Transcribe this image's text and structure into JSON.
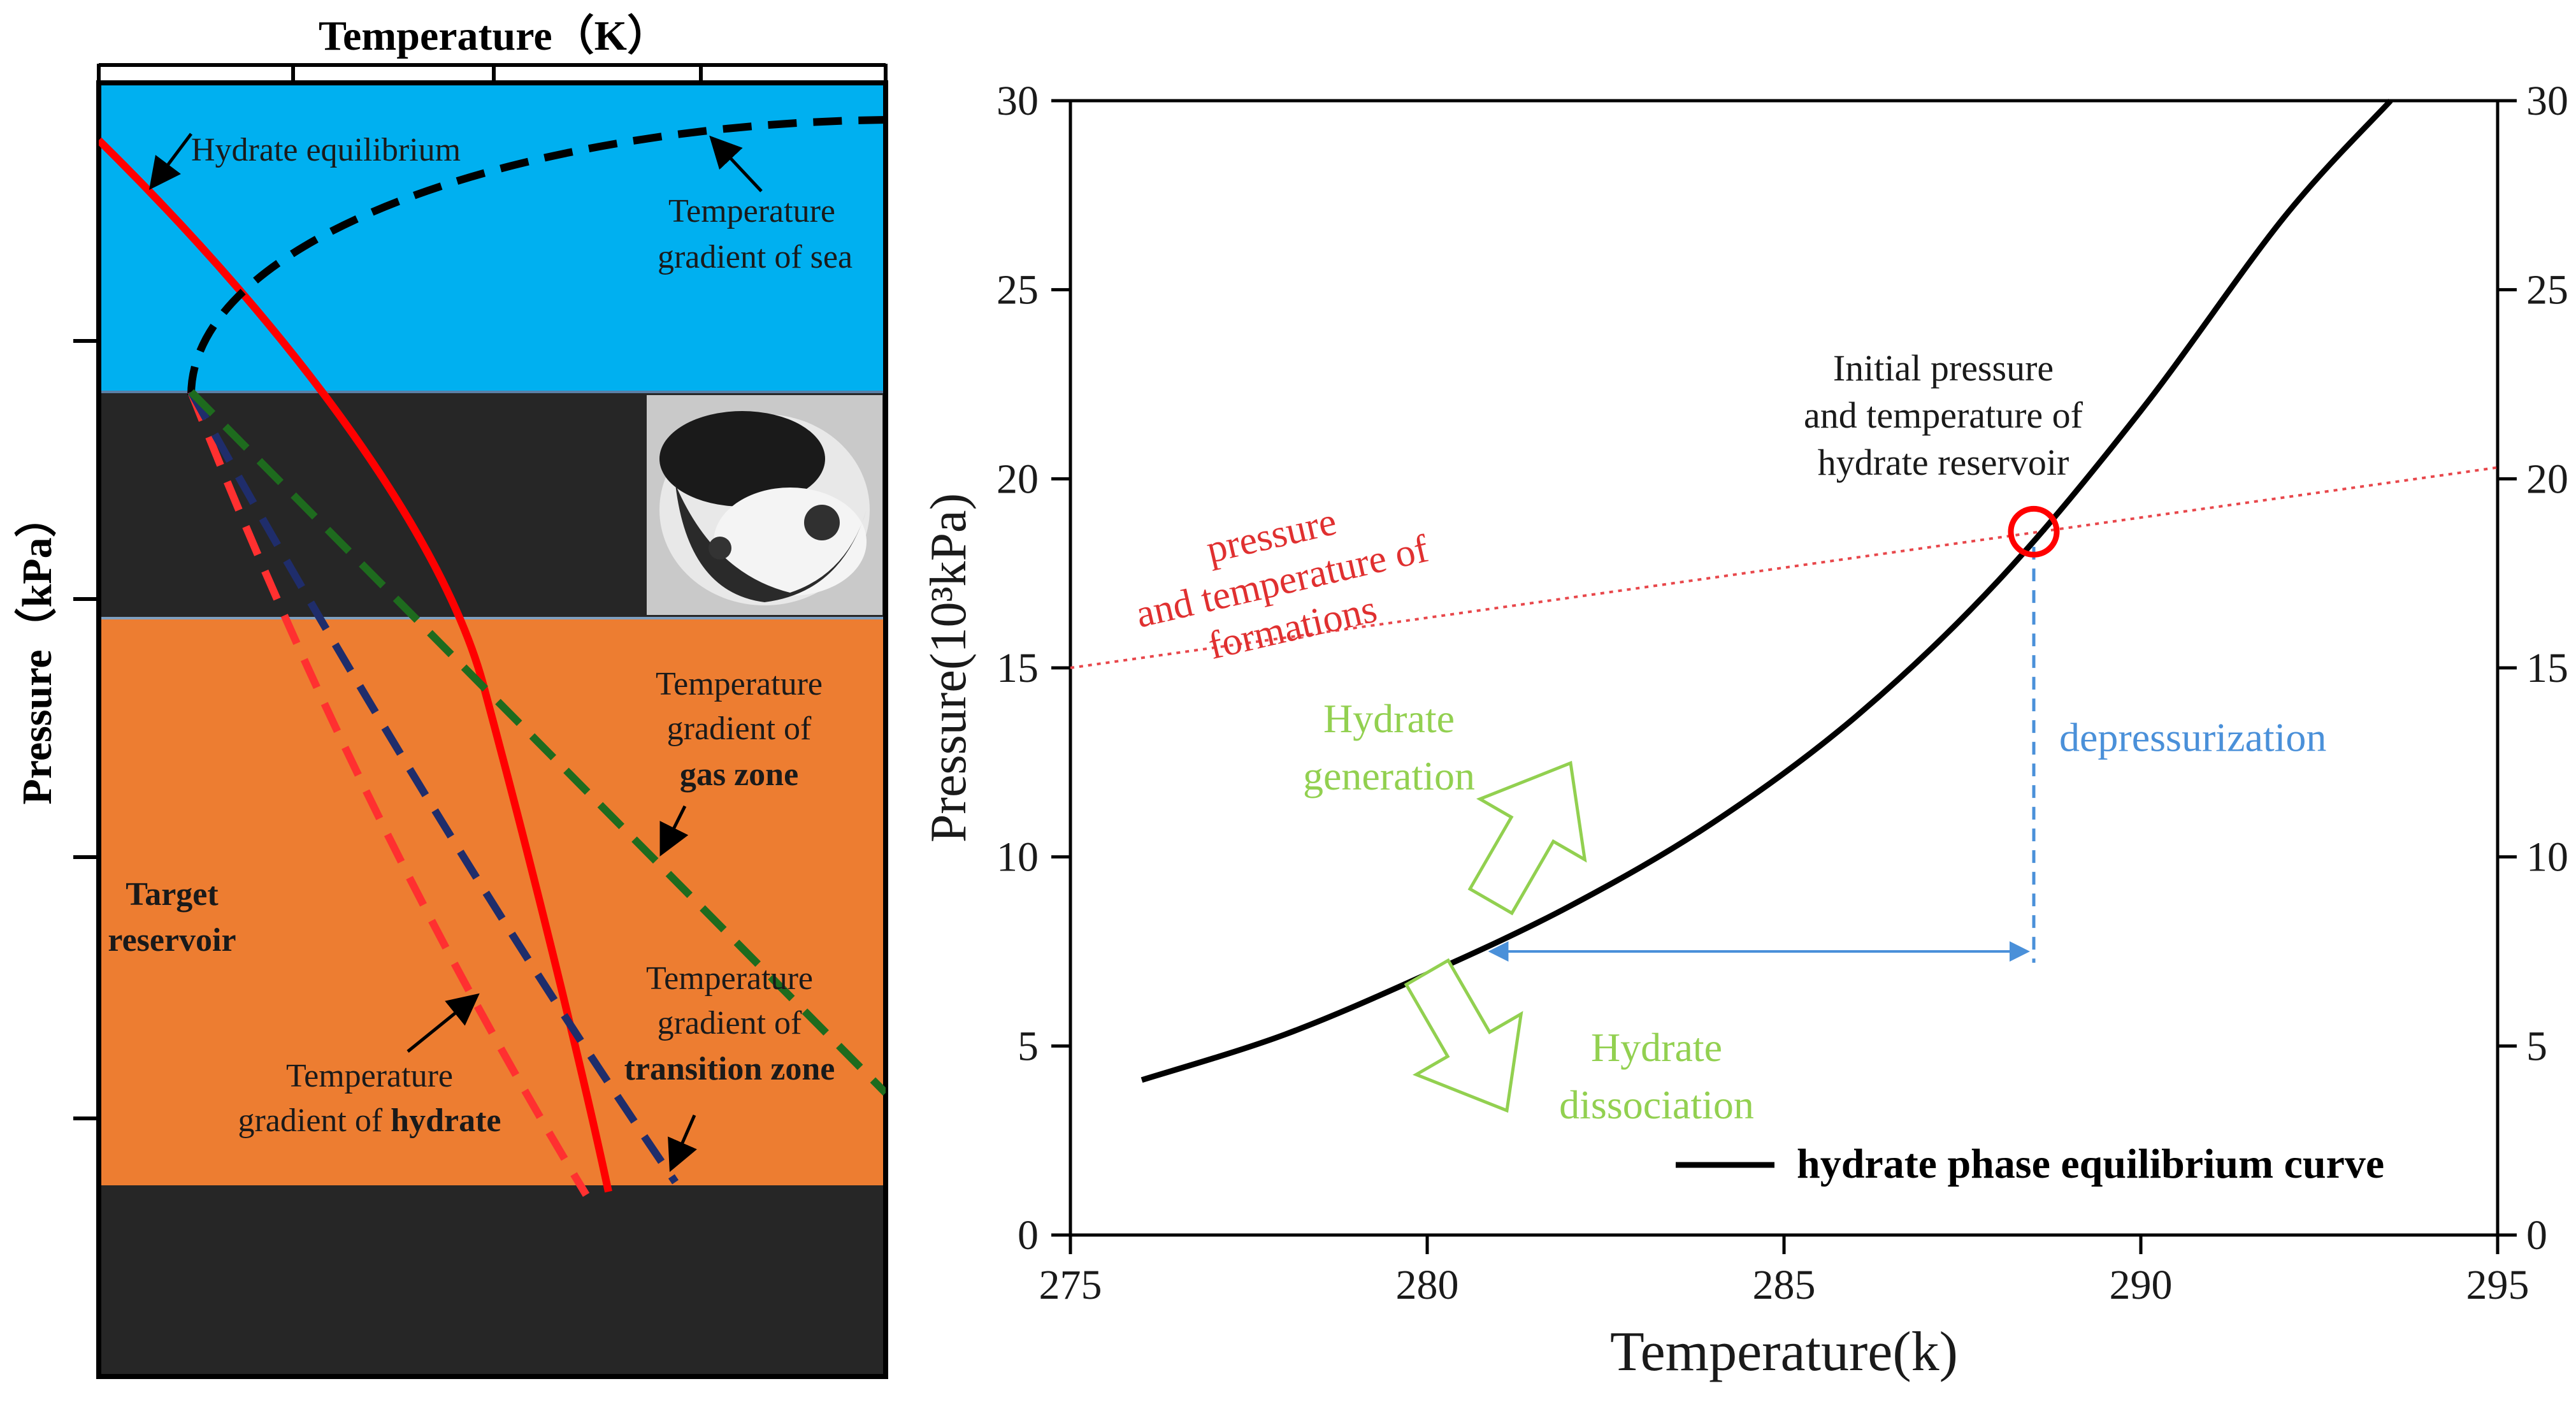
{
  "left_panel": {
    "top_axis_title": "Temperature（K）",
    "y_axis_title": "Pressure（kPa）",
    "colors": {
      "sea": "#00b0f0",
      "dark_layer": "#262626",
      "reservoir": "#ed7d31",
      "hydrate_equilibrium": "#ff0000",
      "sea_gradient": "#000000",
      "hydrate_gradient": "#ff3030",
      "transition_gradient": "#1f2d6b",
      "gas_gradient": "#1e6b1e"
    },
    "labels": {
      "hydrate_equilibrium": "Hydrate equilibrium",
      "sea_gradient_1": "Temperature",
      "sea_gradient_2": "gradient of sea",
      "gas_gradient_1": "Temperature",
      "gas_gradient_2": "gradient of",
      "gas_gradient_3": "gas zone",
      "target_1": "Target",
      "target_2": "reservoir",
      "hydrate_gradient_1": "Temperature",
      "hydrate_gradient_2a": "gradient of ",
      "hydrate_gradient_2b": "hydrate",
      "transition_gradient_1": "Temperature",
      "transition_gradient_2": "gradient of",
      "transition_gradient_3": "transition zone"
    }
  },
  "chart_data": {
    "type": "line",
    "title": "",
    "xlabel": "Temperature(k)",
    "ylabel": "Pressure(10³kPa)",
    "xlim": [
      275,
      295
    ],
    "ylim": [
      0,
      30
    ],
    "x_ticks": [
      275,
      280,
      285,
      290,
      295
    ],
    "y_ticks": [
      0,
      5,
      10,
      15,
      20,
      25,
      30
    ],
    "legend": {
      "label": "hydrate phase equilibrium curve",
      "position": "bottom-right"
    },
    "series": [
      {
        "name": "hydrate phase equilibrium curve",
        "color": "#000000",
        "points": [
          [
            276,
            4.1
          ],
          [
            278,
            5.3
          ],
          [
            280,
            6.9
          ],
          [
            282,
            8.7
          ],
          [
            284,
            10.9
          ],
          [
            286,
            13.7
          ],
          [
            288,
            17.3
          ],
          [
            290,
            21.8
          ],
          [
            292,
            26.9
          ],
          [
            293.5,
            30
          ]
        ]
      },
      {
        "label_lines": [
          "pressure",
          "and temperature of",
          "formations"
        ],
        "color": "#e8474b",
        "points": [
          [
            275,
            15.0
          ],
          [
            295,
            20.3
          ]
        ]
      }
    ],
    "annotations": {
      "initial_point": {
        "x": 288.5,
        "y": 18.6,
        "lines": [
          "Initial pressure",
          "and temperature of",
          "hydrate reservoir"
        ],
        "color": "#ff0000"
      },
      "depressurization": {
        "label": "depressurization",
        "x": 288.5,
        "y_from": 18.2,
        "y_to": 7.2,
        "color": "#4a90d9"
      },
      "arrow_span": {
        "x_from": 280.8,
        "x_to": 288.5,
        "y": 7.5,
        "color": "#4a90d9"
      },
      "generation": {
        "lines": [
          "Hydrate",
          "generation"
        ],
        "color": "#92d050"
      },
      "dissociation": {
        "lines": [
          "Hydrate",
          "dissociation"
        ],
        "color": "#92d050"
      }
    }
  }
}
